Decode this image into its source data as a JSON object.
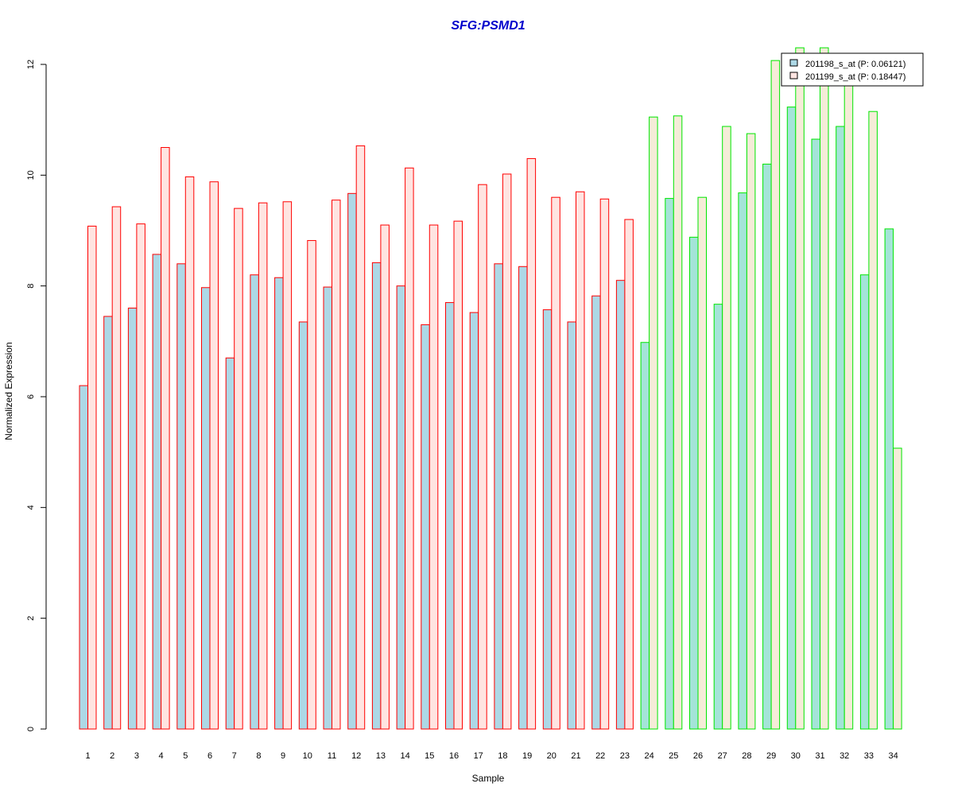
{
  "chart_data": {
    "type": "bar",
    "title": "SFG:PSMD1",
    "xlabel": "Sample",
    "ylabel": "Normalized Expression",
    "ylim": [
      0,
      12
    ],
    "yticks": [
      "0",
      "2",
      "4",
      "6",
      "8",
      "10",
      "12"
    ],
    "categories": [
      "1",
      "2",
      "3",
      "4",
      "5",
      "6",
      "7",
      "8",
      "9",
      "10",
      "11",
      "12",
      "13",
      "14",
      "15",
      "16",
      "17",
      "18",
      "19",
      "20",
      "21",
      "22",
      "23",
      "24",
      "25",
      "26",
      "27",
      "28",
      "29",
      "30",
      "31",
      "32",
      "33",
      "34"
    ],
    "series": [
      {
        "name": "201198_s_at (P: 0.06121)",
        "values": [
          6.2,
          7.45,
          7.6,
          8.57,
          8.4,
          7.97,
          6.7,
          8.2,
          8.15,
          7.35,
          7.98,
          9.67,
          8.42,
          8.0,
          7.3,
          7.7,
          7.52,
          8.4,
          8.35,
          7.57,
          7.35,
          7.82,
          8.1,
          6.98,
          9.58,
          8.88,
          7.67,
          9.68,
          10.2,
          11.23,
          10.65,
          10.88,
          8.2,
          9.03
        ]
      },
      {
        "name": "201199_s_at (P: 0.18447)",
        "values": [
          9.08,
          9.43,
          9.12,
          10.5,
          9.97,
          9.88,
          9.4,
          9.5,
          9.52,
          8.82,
          9.55,
          10.53,
          9.1,
          10.13,
          9.1,
          9.17,
          9.83,
          10.02,
          10.3,
          9.6,
          9.7,
          9.57,
          9.2,
          11.05,
          11.07,
          9.6,
          10.88,
          10.75,
          12.07,
          12.3,
          12.3,
          11.7,
          11.15,
          5.07
        ]
      }
    ],
    "group_break_index": 23,
    "grid": false,
    "legend_position": "top-right"
  },
  "colors": {
    "title": "#0000cc",
    "series1_fill": "#add8e6",
    "series2_fill": "#ffe4e1",
    "series1_fill_group2": "#a4e4d8",
    "series2_fill_group2": "#f5ecd8",
    "border_group1": "#ff0000",
    "border_group2": "#00e600",
    "axis": "#000000"
  }
}
